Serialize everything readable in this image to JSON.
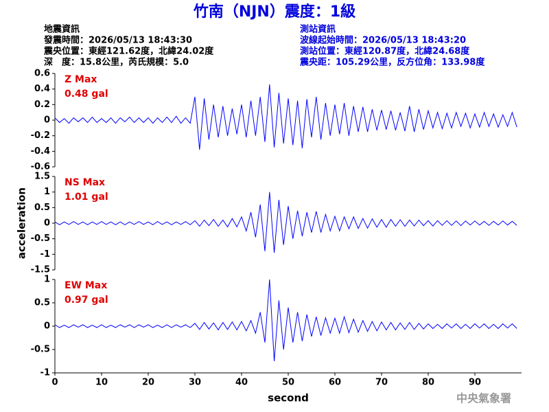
{
  "title": "竹南（NJN）震度：1級",
  "header": {
    "left": [
      "地震資訊",
      "發震時間：2026/05/13 18:43:30",
      "震央位置：東經121.62度，北緯24.02度",
      "深　度：15.8公里，芮氏規模：5.0"
    ],
    "right": [
      "測站資訊",
      "波線起始時間：2026/05/13 18:43:20",
      "測站位置：東經120.87度，北緯24.68度",
      "震央距：105.29公里，反方位角：133.98度"
    ]
  },
  "watermark": "中央氣象署",
  "chart_data": [
    {
      "type": "line",
      "name": "Z Max",
      "max_label": "0.48 gal",
      "color": "#0000ff",
      "xlim": [
        0,
        100
      ],
      "ylim": [
        -0.6,
        0.6
      ],
      "yticks": [
        0.6,
        0.4,
        0.2,
        0,
        -0.2,
        -0.4,
        -0.6
      ],
      "x": [
        0,
        1,
        2,
        3,
        4,
        5,
        6,
        7,
        8,
        9,
        10,
        11,
        12,
        13,
        14,
        15,
        16,
        17,
        18,
        19,
        20,
        21,
        22,
        23,
        24,
        25,
        26,
        27,
        28,
        29,
        30,
        31,
        32,
        33,
        34,
        35,
        36,
        37,
        38,
        39,
        40,
        41,
        42,
        43,
        44,
        45,
        46,
        47,
        48,
        49,
        50,
        51,
        52,
        53,
        54,
        55,
        56,
        57,
        58,
        59,
        60,
        61,
        62,
        63,
        64,
        65,
        66,
        67,
        68,
        69,
        70,
        71,
        72,
        73,
        74,
        75,
        76,
        77,
        78,
        79,
        80,
        81,
        82,
        83,
        84,
        85,
        86,
        87,
        88,
        89,
        90,
        91,
        92,
        93,
        94,
        95,
        96,
        97,
        98,
        99
      ],
      "values": [
        0.03,
        -0.03,
        0.02,
        -0.04,
        0.03,
        -0.02,
        0.03,
        -0.03,
        0.04,
        -0.03,
        0.02,
        -0.03,
        0.03,
        -0.04,
        0.03,
        -0.02,
        0.04,
        -0.03,
        0.03,
        -0.03,
        0.03,
        -0.04,
        0.03,
        -0.03,
        0.04,
        -0.03,
        0.05,
        -0.04,
        0.03,
        -0.04,
        0.3,
        -0.38,
        0.28,
        -0.25,
        0.2,
        -0.22,
        0.18,
        -0.2,
        0.15,
        -0.18,
        0.2,
        -0.22,
        0.25,
        -0.2,
        0.3,
        -0.28,
        0.46,
        -0.35,
        0.35,
        -0.3,
        0.28,
        -0.32,
        0.25,
        -0.36,
        0.27,
        -0.22,
        0.3,
        -0.25,
        0.22,
        -0.2,
        0.2,
        -0.18,
        0.22,
        -0.2,
        0.18,
        -0.15,
        0.17,
        -0.15,
        0.14,
        -0.13,
        0.13,
        -0.12,
        0.12,
        -0.13,
        0.1,
        -0.14,
        0.18,
        -0.15,
        0.14,
        -0.12,
        0.12,
        -0.1,
        0.1,
        -0.11,
        0.09,
        -0.1,
        0.1,
        -0.08,
        0.09,
        -0.1,
        0.08,
        -0.09,
        0.1,
        -0.08,
        0.08,
        -0.09,
        0.07,
        -0.08,
        0.1,
        -0.09
      ]
    },
    {
      "type": "line",
      "name": "NS Max",
      "max_label": "1.01 gal",
      "color": "#0000ff",
      "ylabel": "acceleration",
      "xlim": [
        0,
        100
      ],
      "ylim": [
        -1.5,
        1.5
      ],
      "yticks": [
        1.5,
        1,
        0.5,
        0,
        -0.5,
        -1,
        -1.5
      ],
      "x": [
        0,
        1,
        2,
        3,
        4,
        5,
        6,
        7,
        8,
        9,
        10,
        11,
        12,
        13,
        14,
        15,
        16,
        17,
        18,
        19,
        20,
        21,
        22,
        23,
        24,
        25,
        26,
        27,
        28,
        29,
        30,
        31,
        32,
        33,
        34,
        35,
        36,
        37,
        38,
        39,
        40,
        41,
        42,
        43,
        44,
        45,
        46,
        47,
        48,
        49,
        50,
        51,
        52,
        53,
        54,
        55,
        56,
        57,
        58,
        59,
        60,
        61,
        62,
        63,
        64,
        65,
        66,
        67,
        68,
        69,
        70,
        71,
        72,
        73,
        74,
        75,
        76,
        77,
        78,
        79,
        80,
        81,
        82,
        83,
        84,
        85,
        86,
        87,
        88,
        89,
        90,
        91,
        92,
        93,
        94,
        95,
        96,
        97,
        98,
        99
      ],
      "values": [
        0.04,
        -0.05,
        0.04,
        -0.04,
        0.05,
        -0.04,
        0.04,
        -0.05,
        0.04,
        -0.04,
        0.05,
        -0.04,
        0.04,
        -0.05,
        0.04,
        -0.05,
        0.04,
        -0.04,
        0.05,
        -0.04,
        0.04,
        -0.05,
        0.05,
        -0.04,
        0.04,
        -0.05,
        0.04,
        -0.04,
        0.05,
        -0.05,
        0.08,
        -0.1,
        0.1,
        -0.08,
        0.12,
        -0.1,
        0.1,
        -0.12,
        0.15,
        -0.12,
        0.2,
        -0.25,
        0.35,
        -0.45,
        0.6,
        -0.9,
        1.0,
        -0.95,
        0.75,
        -0.7,
        0.55,
        -0.5,
        0.4,
        -0.42,
        0.35,
        -0.3,
        0.38,
        -0.3,
        0.28,
        -0.25,
        0.22,
        -0.25,
        0.2,
        -0.18,
        0.2,
        -0.17,
        0.15,
        -0.16,
        0.14,
        -0.13,
        0.12,
        -0.13,
        0.12,
        -0.1,
        0.11,
        -0.1,
        0.1,
        -0.09,
        0.1,
        -0.08,
        0.08,
        -0.09,
        0.08,
        -0.07,
        0.08,
        -0.07,
        0.07,
        -0.08,
        0.07,
        -0.06,
        0.07,
        -0.06,
        0.06,
        -0.07,
        0.06,
        -0.06,
        0.07,
        -0.06,
        0.06,
        -0.07
      ]
    },
    {
      "type": "line",
      "name": "EW Max",
      "max_label": "0.97 gal",
      "color": "#0000ff",
      "xlabel": "second",
      "xlim": [
        0,
        100
      ],
      "ylim": [
        -1,
        1
      ],
      "yticks": [
        1,
        0.5,
        0,
        -0.5,
        -1
      ],
      "xticks": [
        0,
        10,
        20,
        30,
        40,
        50,
        60,
        70,
        80,
        90
      ],
      "x": [
        0,
        1,
        2,
        3,
        4,
        5,
        6,
        7,
        8,
        9,
        10,
        11,
        12,
        13,
        14,
        15,
        16,
        17,
        18,
        19,
        20,
        21,
        22,
        23,
        24,
        25,
        26,
        27,
        28,
        29,
        30,
        31,
        32,
        33,
        34,
        35,
        36,
        37,
        38,
        39,
        40,
        41,
        42,
        43,
        44,
        45,
        46,
        47,
        48,
        49,
        50,
        51,
        52,
        53,
        54,
        55,
        56,
        57,
        58,
        59,
        60,
        61,
        62,
        63,
        64,
        65,
        66,
        67,
        68,
        69,
        70,
        71,
        72,
        73,
        74,
        75,
        76,
        77,
        78,
        79,
        80,
        81,
        82,
        83,
        84,
        85,
        86,
        87,
        88,
        89,
        90,
        91,
        92,
        93,
        94,
        95,
        96,
        97,
        98,
        99
      ],
      "values": [
        0.03,
        -0.03,
        0.02,
        -0.03,
        0.03,
        -0.02,
        0.03,
        -0.03,
        0.02,
        -0.03,
        0.03,
        -0.03,
        0.02,
        -0.03,
        0.03,
        -0.02,
        0.03,
        -0.03,
        0.03,
        -0.02,
        0.03,
        -0.03,
        0.02,
        -0.03,
        0.03,
        -0.03,
        0.03,
        -0.02,
        0.03,
        -0.03,
        0.06,
        -0.07,
        0.08,
        -0.06,
        0.07,
        -0.08,
        0.08,
        -0.07,
        0.09,
        -0.08,
        0.1,
        -0.1,
        0.12,
        -0.15,
        0.3,
        -0.35,
        1.0,
        -0.75,
        0.55,
        -0.5,
        0.4,
        -0.35,
        0.3,
        -0.32,
        0.25,
        -0.22,
        0.2,
        -0.2,
        0.18,
        -0.15,
        0.17,
        -0.15,
        0.2,
        -0.14,
        0.15,
        -0.13,
        0.12,
        -0.11,
        0.1,
        -0.1,
        0.09,
        -0.08,
        0.08,
        -0.08,
        0.07,
        -0.07,
        0.08,
        -0.07,
        0.06,
        -0.06,
        0.05,
        -0.05,
        0.04,
        -0.05,
        0.05,
        -0.04,
        0.05,
        -0.05,
        0.04,
        -0.05,
        0.05,
        -0.04,
        0.05,
        -0.05,
        0.04,
        -0.05,
        0.05,
        -0.04,
        0.05,
        -0.05
      ]
    }
  ]
}
